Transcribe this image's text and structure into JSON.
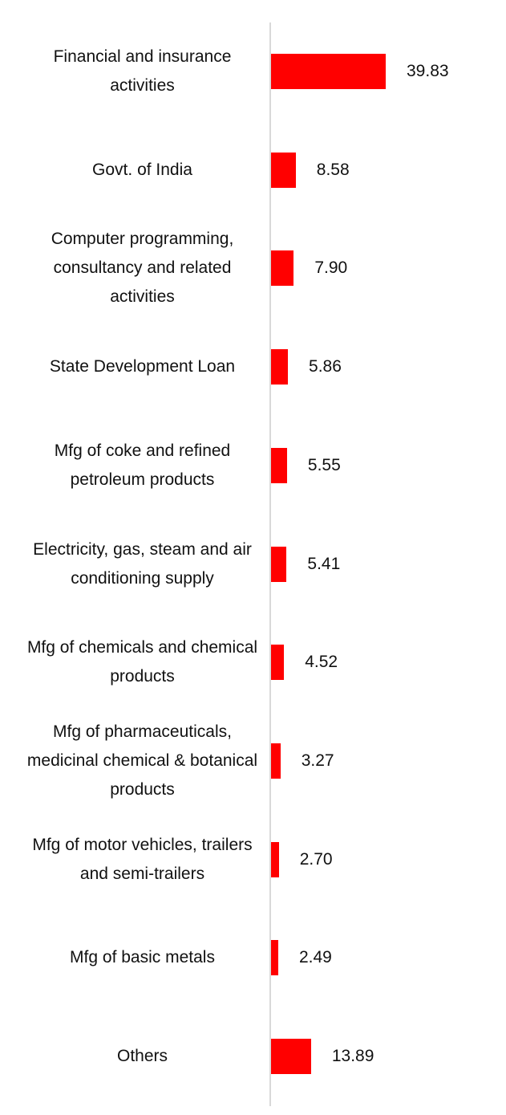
{
  "chart_data": {
    "type": "bar",
    "orientation": "horizontal",
    "categories": [
      "Financial and insurance activities",
      "Govt. of India",
      "Computer programming, consultancy and related activities",
      "State Development Loan",
      "Mfg of coke and refined petroleum products",
      "Electricity, gas, steam and air conditioning supply",
      "Mfg of chemicals and chemical products",
      "Mfg of pharmaceuticals, medicinal chemical & botanical products",
      "Mfg of motor vehicles, trailers and semi-trailers",
      "Mfg of basic metals",
      "Others"
    ],
    "values": [
      39.83,
      8.58,
      7.9,
      5.86,
      5.55,
      5.41,
      4.52,
      3.27,
      2.7,
      2.49,
      13.89
    ],
    "value_labels": [
      "39.83",
      "8.58",
      "7.90",
      "5.86",
      "5.55",
      "5.41",
      "4.52",
      "3.27",
      "2.70",
      "2.49",
      "13.89"
    ],
    "color": "#ff0000"
  }
}
